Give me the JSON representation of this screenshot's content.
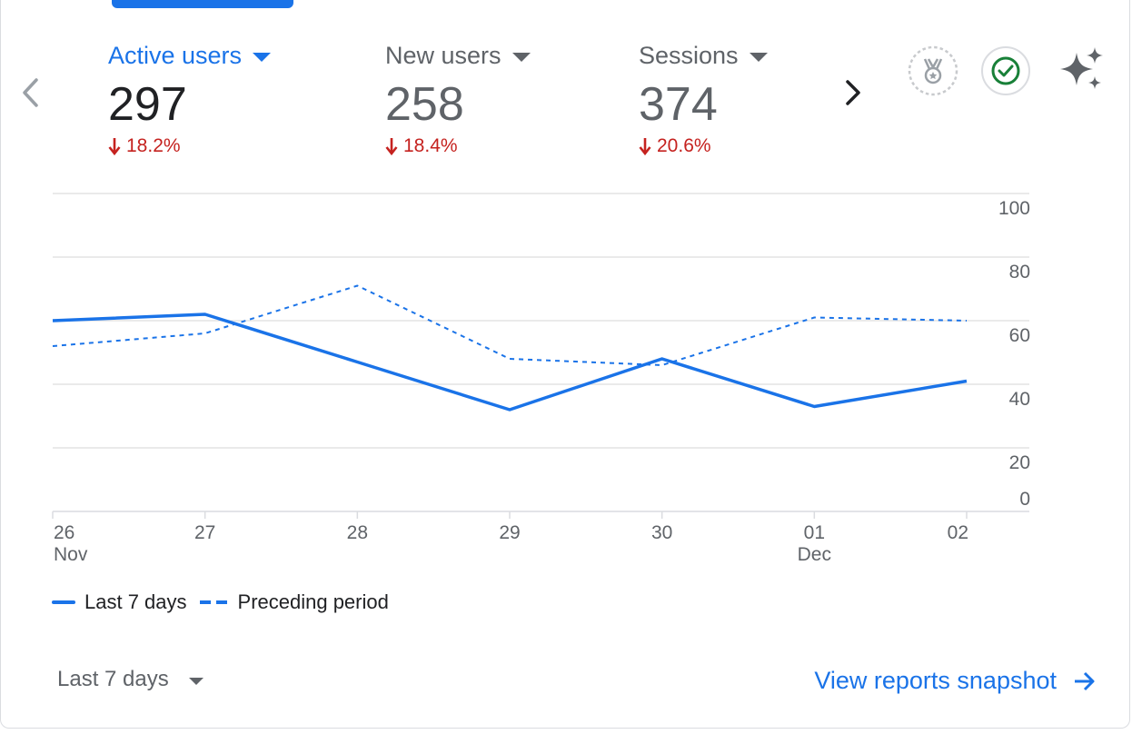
{
  "tabs": [
    {
      "label": "Active users",
      "value": "297",
      "change": "18.2%",
      "active": true
    },
    {
      "label": "New users",
      "value": "258",
      "change": "18.4%",
      "active": false
    },
    {
      "label": "Sessions",
      "value": "374",
      "change": "20.6%",
      "active": false
    }
  ],
  "icons": {
    "prev": "chevron-left-icon",
    "next": "chevron-right-icon",
    "badge": "medal-badge-icon",
    "check": "check-circle-icon",
    "insights": "sparkle-icon"
  },
  "colors": {
    "accent": "#1a73e8",
    "negative": "#c5221f",
    "check": "#188038"
  },
  "chart_data": {
    "type": "line",
    "x": [
      "26",
      "27",
      "28",
      "29",
      "30",
      "01",
      "02"
    ],
    "x_sublabels": [
      "Nov",
      "",
      "",
      "",
      "",
      "Dec",
      ""
    ],
    "ylim": [
      0,
      100
    ],
    "y_ticks": [
      0,
      20,
      40,
      60,
      80,
      100
    ],
    "grid": true,
    "legend_position": "bottom-left",
    "series": [
      {
        "name": "Last 7 days",
        "style": "solid",
        "values": [
          60,
          62,
          47,
          32,
          48,
          33,
          41
        ]
      },
      {
        "name": "Preceding period",
        "style": "dashed",
        "values": [
          52,
          56,
          71,
          48,
          46,
          61,
          60
        ]
      }
    ]
  },
  "footer": {
    "period_label": "Last 7 days",
    "snapshot_label": "View reports snapshot"
  }
}
